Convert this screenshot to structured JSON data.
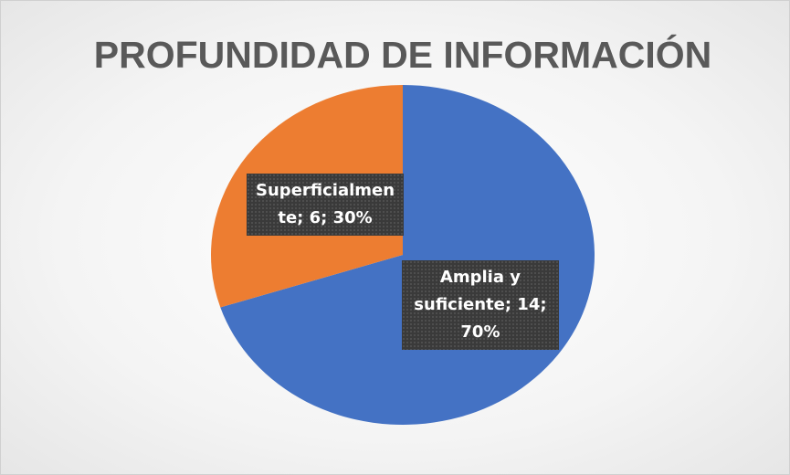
{
  "chart_data": {
    "type": "pie",
    "title": "PROFUNDIDAD DE INFORMACIÓN",
    "values": [
      14,
      6
    ],
    "value_labels": [
      "Amplia y suficiente; 14; 70%",
      "Superficialmente; 6; 30%"
    ],
    "colors": [
      "#4472c4",
      "#ed7d31"
    ]
  }
}
